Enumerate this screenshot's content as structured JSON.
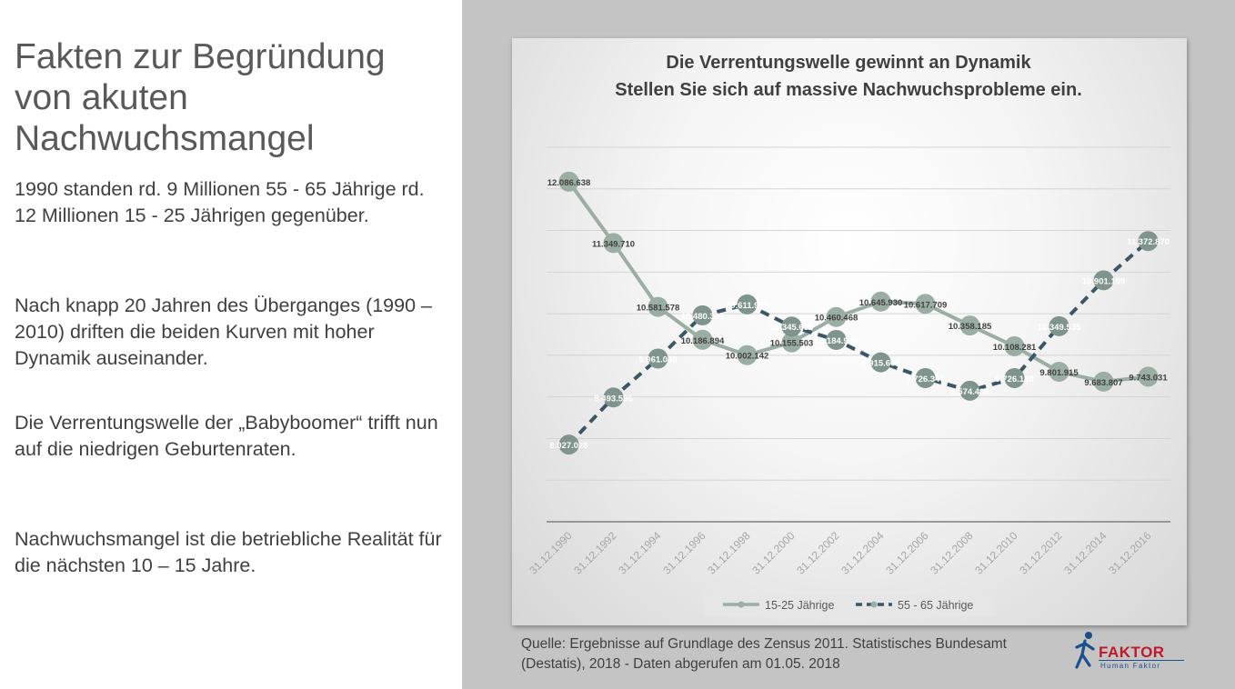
{
  "slide": {
    "title": "Fakten zur Begründung von akuten Nachwuchsmangel",
    "paragraphs": [
      "1990 standen rd. 9 Millionen 55 - 65 Jährige rd. 12 Millionen 15 - 25 Jährigen gegenüber.",
      "Nach knapp 20 Jahren des Überganges (1990 – 2010) driften die beiden Kurven mit hoher Dynamik auseinander.",
      "Die Verrentungswelle der „Babyboomer“ trifft nun auf die niedrigen Geburtenraten.",
      "Nachwuchsmangel ist die betriebliche Realität für die nächsten 10 – 15 Jahre."
    ],
    "source": "Quelle: Ergebnisse auf Grundlage des Zensus 2011. Statistisches Bundesamt (Destatis), 2018 -  Daten abgerufen am 01.05. 2018",
    "logo": {
      "word": "FAKTOR",
      "sub": "Human Faktor",
      "icon": "running-figure-icon"
    }
  },
  "chart_data": {
    "type": "line",
    "title_lines": [
      "Die Verrentungswelle gewinnt an Dynamik",
      "Stellen Sie sich auf massive Nachwuchsprobleme ein."
    ],
    "categories": [
      "31.12.1990",
      "31.12.1992",
      "31.12.1994",
      "31.12.1996",
      "31.12.1998",
      "31.12.2000",
      "31.12.2002",
      "31.12.2004",
      "31.12.2006",
      "31.12.2008",
      "31.12.2010",
      "31.12.2012",
      "31.12.2014",
      "31.12.2016"
    ],
    "series": [
      {
        "name": "15-25 Jährige",
        "color": "#9aaea3",
        "style": "solid",
        "values": [
          12086638,
          11349710,
          10581578,
          10186894,
          10002142,
          10155503,
          10460468,
          10645930,
          10617709,
          10358185,
          10108281,
          9801915,
          9683807,
          9743031
        ],
        "labels": [
          "12.086.638",
          "11.349.710",
          "10.581.578",
          "10.186.894",
          "10.002.142",
          "10.155.503",
          "10.460.468",
          "10.645.930",
          "10.617.709",
          "10.358.185",
          "10.108.281",
          "9.801.915",
          "9.683.807",
          "9.743.031"
        ]
      },
      {
        "name": "55 - 65 Jährige",
        "color": "#3b5766",
        "style": "dashed",
        "values": [
          8927028,
          9493596,
          9961045,
          10480332,
          10611957,
          10345695,
          10184958,
          9915606,
          9726347,
          9574494,
          9726180,
          10349535,
          10901109,
          11372870
        ],
        "labels": [
          "8.927.028",
          "9.493.596",
          "9.961.045",
          "10.480.332",
          "10.611.957",
          "10.345.695",
          "10.184.958",
          "9.915.606",
          "9.726.347",
          "9.574.494",
          "9.726.180",
          "10.349.535",
          "10.901.109",
          "11.372.870"
        ]
      }
    ],
    "ylim": [
      8000000,
      12500000
    ],
    "grid": true,
    "legend_position": "bottom"
  }
}
